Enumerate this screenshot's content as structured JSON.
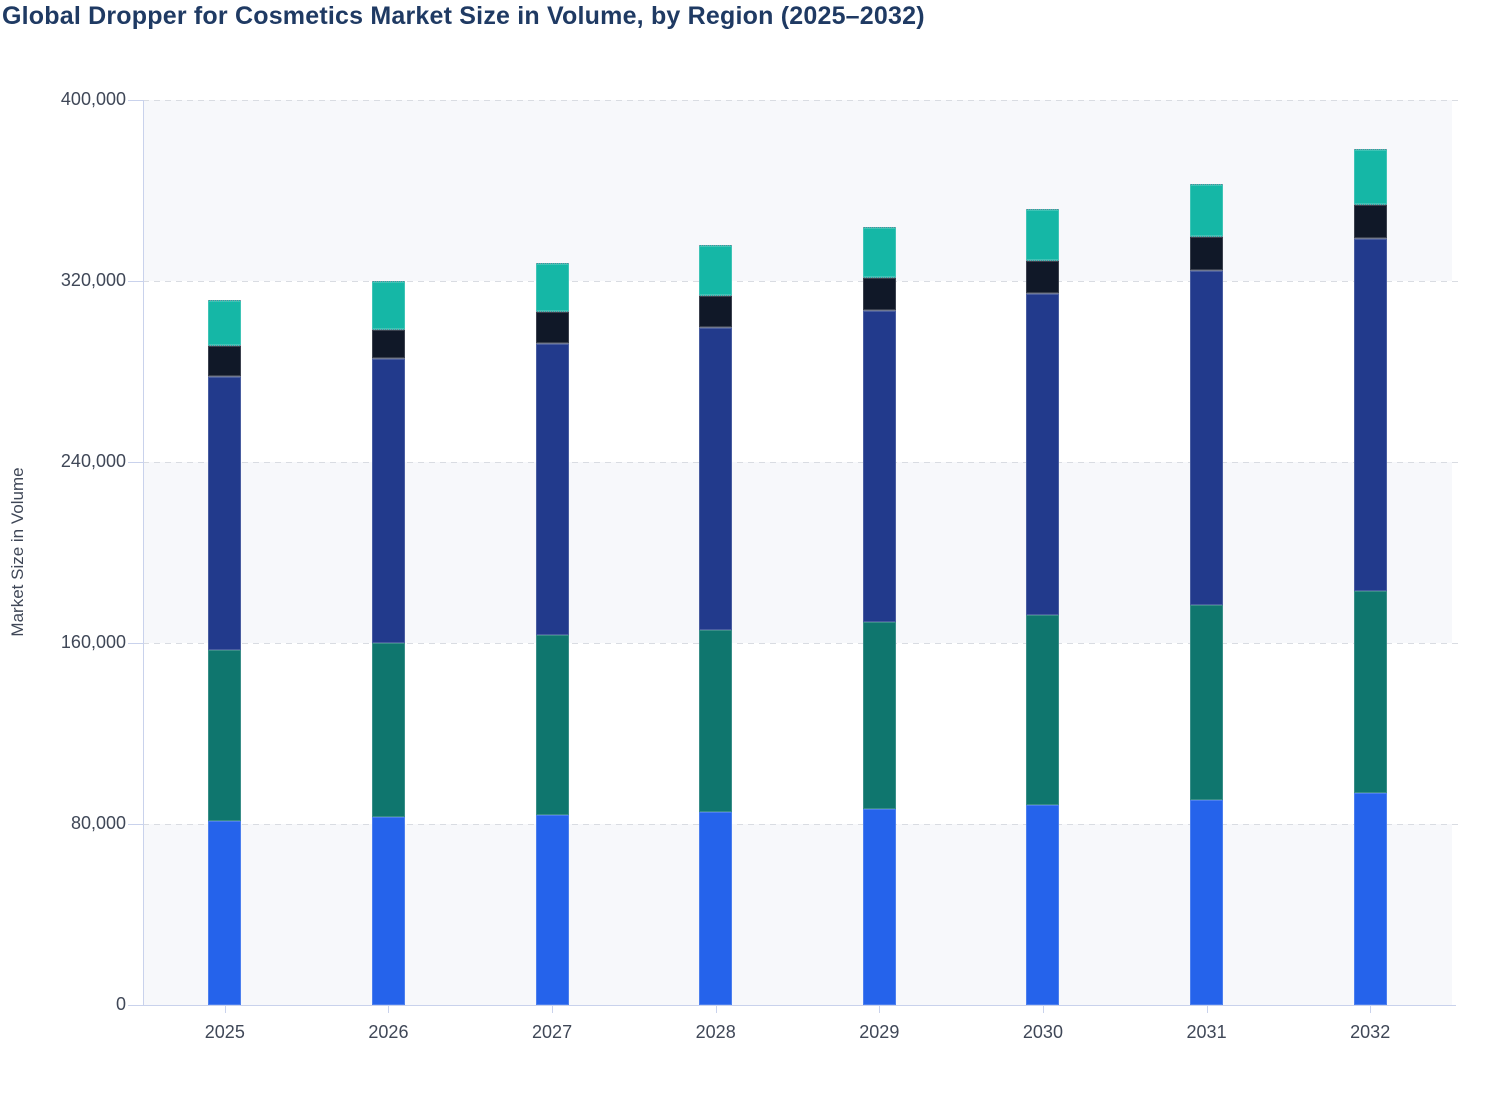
{
  "chart_data": {
    "type": "bar",
    "stacked": true,
    "title": "Global Dropper for Cosmetics Market Size in Volume, by Region (2025–2032)",
    "xlabel": "",
    "ylabel": "Market Size in Volume",
    "categories": [
      "2025",
      "2026",
      "2027",
      "2028",
      "2029",
      "2030",
      "2031",
      "2032"
    ],
    "series": [
      {
        "name": "segment-1-bottom-bright-blue",
        "color": "#2563eb",
        "values": [
          81500,
          82900,
          84000,
          85100,
          86700,
          88400,
          90400,
          93800
        ]
      },
      {
        "name": "segment-2-dark-teal-green",
        "color": "#0f766e",
        "values": [
          75600,
          77100,
          79700,
          80800,
          82500,
          83800,
          86200,
          89300
        ]
      },
      {
        "name": "segment-3-navy-blue",
        "color": "#223a8c",
        "values": [
          120600,
          125400,
          128600,
          133400,
          137400,
          142200,
          147800,
          155600
        ]
      },
      {
        "name": "segment-4-near-black-navy",
        "color": "#101828",
        "values": [
          13400,
          13100,
          13900,
          14200,
          14700,
          14300,
          15000,
          14700
        ]
      },
      {
        "name": "segment-5-top-turquoise",
        "color": "#15b7a6",
        "values": [
          20700,
          21500,
          21600,
          22200,
          22600,
          23000,
          23600,
          24800
        ]
      }
    ],
    "totals": [
      311800,
      320000,
      327800,
      335700,
      343900,
      351700,
      363000,
      378200
    ],
    "ylim": [
      0,
      400000
    ],
    "y_tick_values": [
      0,
      80000,
      160000,
      240000,
      320000,
      400000
    ],
    "y_tick_labels": [
      "0",
      "80,000",
      "160,000",
      "240,000",
      "320,000",
      "400,000"
    ],
    "grid": "horizontal-dashed",
    "legend": "none",
    "stack_order": "bottom-to-top",
    "plot_bands": "alternating row shading, shaded rows: 400k-320k, 240k-160k, 80k-0"
  },
  "colors": {
    "title": "#1f3a63",
    "axis_labels": "#3f4757",
    "axis_line": "#c9d2ec",
    "gridline": "#d9dce2",
    "row_band": "#f7f8fb",
    "background": "#ffffff"
  }
}
